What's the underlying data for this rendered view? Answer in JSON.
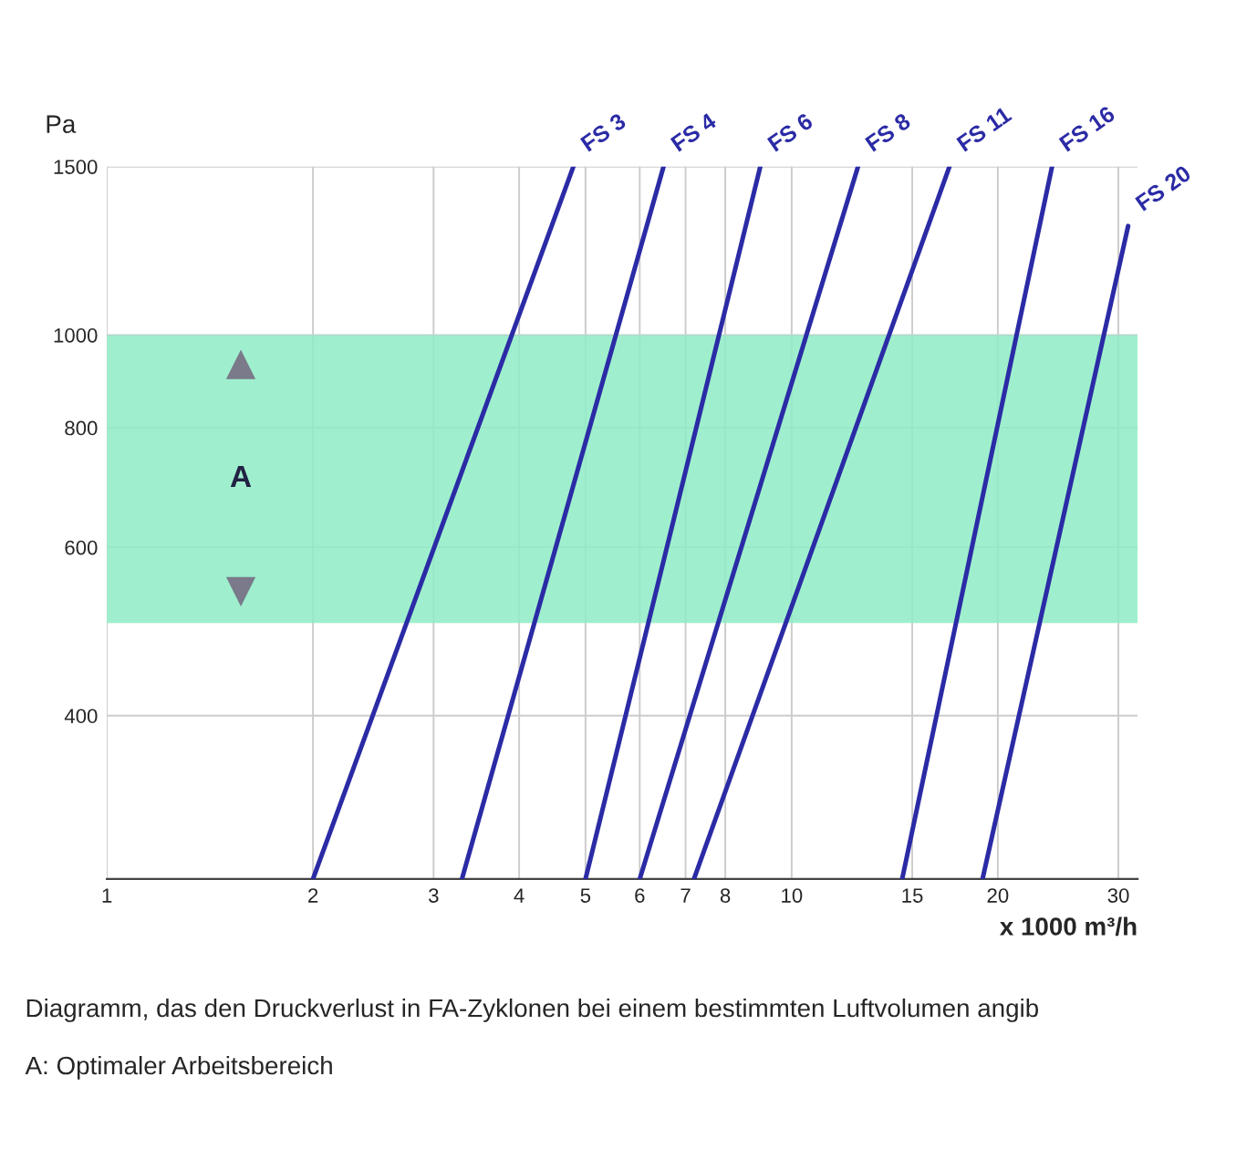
{
  "chart_data": {
    "type": "line",
    "xlabel": "x 1000 m³/h",
    "ylabel": "Pa",
    "log": "xy",
    "xlim": [
      1,
      32
    ],
    "xticks": [
      1,
      2,
      3,
      4,
      5,
      6,
      7,
      8,
      10,
      15,
      20,
      30
    ],
    "ylim": [
      270,
      1500
    ],
    "yticks": [
      400,
      600,
      800,
      1000,
      1500
    ],
    "grid": true,
    "legend": false,
    "marker": "none",
    "line_style": "solid",
    "series": [
      {
        "name": "FS 3",
        "color": "#2b2ba6",
        "x": [
          2,
          4.8
        ],
        "values": [
          270,
          1500
        ]
      },
      {
        "name": "FS 4",
        "color": "#2b2ba6",
        "x": [
          3.3,
          6.5
        ],
        "values": [
          270,
          1500
        ]
      },
      {
        "name": "FS 6",
        "color": "#2b2ba6",
        "x": [
          5,
          9
        ],
        "values": [
          270,
          1500
        ]
      },
      {
        "name": "FS 8",
        "color": "#2b2ba6",
        "x": [
          6,
          12.5
        ],
        "values": [
          270,
          1500
        ]
      },
      {
        "name": "FS 11",
        "color": "#2b2ba6",
        "x": [
          7.2,
          17
        ],
        "values": [
          270,
          1500
        ]
      },
      {
        "name": "FS 16",
        "color": "#2b2ba6",
        "x": [
          14.5,
          24
        ],
        "values": [
          270,
          1500
        ]
      },
      {
        "name": "FS 20",
        "color": "#2b2ba6",
        "x": [
          19,
          31
        ],
        "values": [
          270,
          1300
        ]
      }
    ],
    "bands": [
      {
        "axis": "y",
        "from": 500,
        "to": 1000,
        "label": "A",
        "color": "#8eecc6"
      }
    ],
    "annotations": [
      "Diagramm, das den Druckverlust in FA-Zyklonen bei einem bestimmten Luftvolumen angib",
      "A: Optimaler Arbeitsbereich"
    ]
  }
}
